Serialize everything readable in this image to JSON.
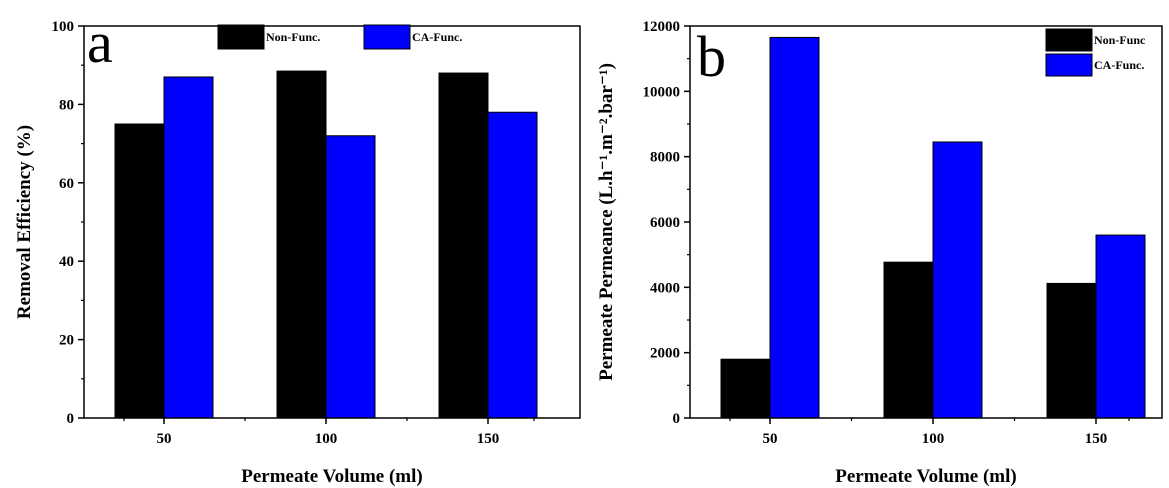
{
  "chart_data": [
    {
      "type": "bar",
      "panel_label": "a",
      "categories": [
        "50",
        "100",
        "150"
      ],
      "series": [
        {
          "name": "Non-Func.",
          "values": [
            75,
            88.5,
            88
          ],
          "color": "#000000"
        },
        {
          "name": "CA-Func.",
          "values": [
            87,
            72,
            78
          ],
          "color": "#0000ff"
        }
      ],
      "xlabel": "Permeate Volume (ml)",
      "ylabel": "Removal Efficiency (%)",
      "ylim": [
        0,
        100
      ],
      "yticks": [
        0,
        20,
        40,
        60,
        80,
        100
      ],
      "legend_position": "top-center",
      "grid": false
    },
    {
      "type": "bar",
      "panel_label": "b",
      "categories": [
        "50",
        "100",
        "150"
      ],
      "series": [
        {
          "name": "Non-Func",
          "values": [
            1800,
            4770,
            4120
          ],
          "color": "#000000"
        },
        {
          "name": "CA-Func.",
          "values": [
            11650,
            8450,
            5600
          ],
          "color": "#0000ff"
        }
      ],
      "xlabel": "Permeate Volume (ml)",
      "ylabel": "Permeate Permeance (L.h⁻¹.m⁻².bar⁻¹)",
      "ylim": [
        0,
        12000
      ],
      "yticks": [
        0,
        2000,
        4000,
        6000,
        8000,
        10000,
        12000
      ],
      "legend_position": "top-right",
      "grid": false
    }
  ]
}
